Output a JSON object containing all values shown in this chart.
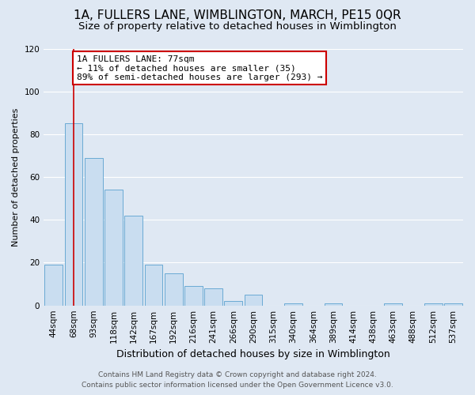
{
  "title": "1A, FULLERS LANE, WIMBLINGTON, MARCH, PE15 0QR",
  "subtitle": "Size of property relative to detached houses in Wimblington",
  "xlabel": "Distribution of detached houses by size in Wimblington",
  "ylabel": "Number of detached properties",
  "bar_labels": [
    "44sqm",
    "68sqm",
    "93sqm",
    "118sqm",
    "142sqm",
    "167sqm",
    "192sqm",
    "216sqm",
    "241sqm",
    "266sqm",
    "290sqm",
    "315sqm",
    "340sqm",
    "364sqm",
    "389sqm",
    "414sqm",
    "438sqm",
    "463sqm",
    "488sqm",
    "512sqm",
    "537sqm"
  ],
  "bar_values": [
    19,
    85,
    69,
    54,
    42,
    19,
    15,
    9,
    8,
    2,
    5,
    0,
    1,
    0,
    1,
    0,
    0,
    1,
    0,
    1,
    1
  ],
  "bar_color": "#c9ddf0",
  "bar_edge_color": "#6aaad4",
  "bg_color": "#dfe8f3",
  "grid_color": "#ffffff",
  "annotation_line1": "1A FULLERS LANE: 77sqm",
  "annotation_line2": "← 11% of detached houses are smaller (35)",
  "annotation_line3": "89% of semi-detached houses are larger (293) →",
  "annotation_box_color": "#ffffff",
  "annotation_box_edge_color": "#cc0000",
  "red_line_x": 1,
  "ylim": [
    0,
    120
  ],
  "yticks": [
    0,
    20,
    40,
    60,
    80,
    100,
    120
  ],
  "footer_line1": "Contains HM Land Registry data © Crown copyright and database right 2024.",
  "footer_line2": "Contains public sector information licensed under the Open Government Licence v3.0.",
  "title_fontsize": 11,
  "subtitle_fontsize": 9.5,
  "xlabel_fontsize": 9,
  "ylabel_fontsize": 8,
  "tick_fontsize": 7.5,
  "annotation_fontsize": 8,
  "footer_fontsize": 6.5
}
